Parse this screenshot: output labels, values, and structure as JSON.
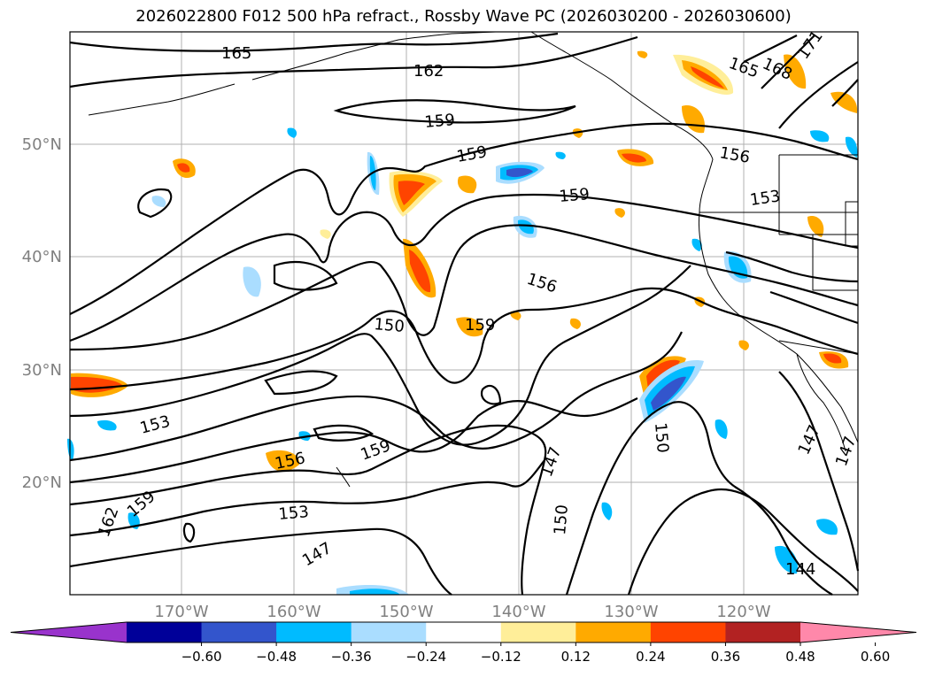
{
  "title": "2026022800 F012 500 hPa refract., Rossby Wave PC (2026030200 - 2026030600)",
  "map": {
    "lat_labels": [
      "50°N",
      "40°N",
      "30°N",
      "20°N"
    ],
    "lon_labels": [
      "170°W",
      "160°W",
      "150°W",
      "140°W",
      "130°W",
      "120°W"
    ],
    "contour_labels": [
      {
        "text": "165"
      },
      {
        "text": "162"
      },
      {
        "text": "159"
      },
      {
        "text": "159"
      },
      {
        "text": "159"
      },
      {
        "text": "156"
      },
      {
        "text": "153"
      },
      {
        "text": "156"
      },
      {
        "text": "150"
      },
      {
        "text": "159"
      },
      {
        "text": "153"
      },
      {
        "text": "156"
      },
      {
        "text": "159"
      },
      {
        "text": "159"
      },
      {
        "text": "162"
      },
      {
        "text": "153"
      },
      {
        "text": "147"
      },
      {
        "text": "147"
      },
      {
        "text": "150"
      },
      {
        "text": "150"
      },
      {
        "text": "147"
      },
      {
        "text": "147"
      },
      {
        "text": "144"
      },
      {
        "text": "165"
      },
      {
        "text": "168"
      },
      {
        "text": "171"
      }
    ]
  },
  "colorbar": {
    "tick_labels": [
      "−0.60",
      "−0.48",
      "−0.36",
      "−0.24",
      "−0.12",
      "0.12",
      "0.24",
      "0.36",
      "0.48",
      "0.60"
    ],
    "colors": [
      "#9933cc",
      "#000099",
      "#3355cc",
      "#00bbff",
      "#aaddff",
      "#ffffff",
      "#ffee99",
      "#ffaa00",
      "#ff4400",
      "#b22222",
      "#ff88aa"
    ]
  }
}
